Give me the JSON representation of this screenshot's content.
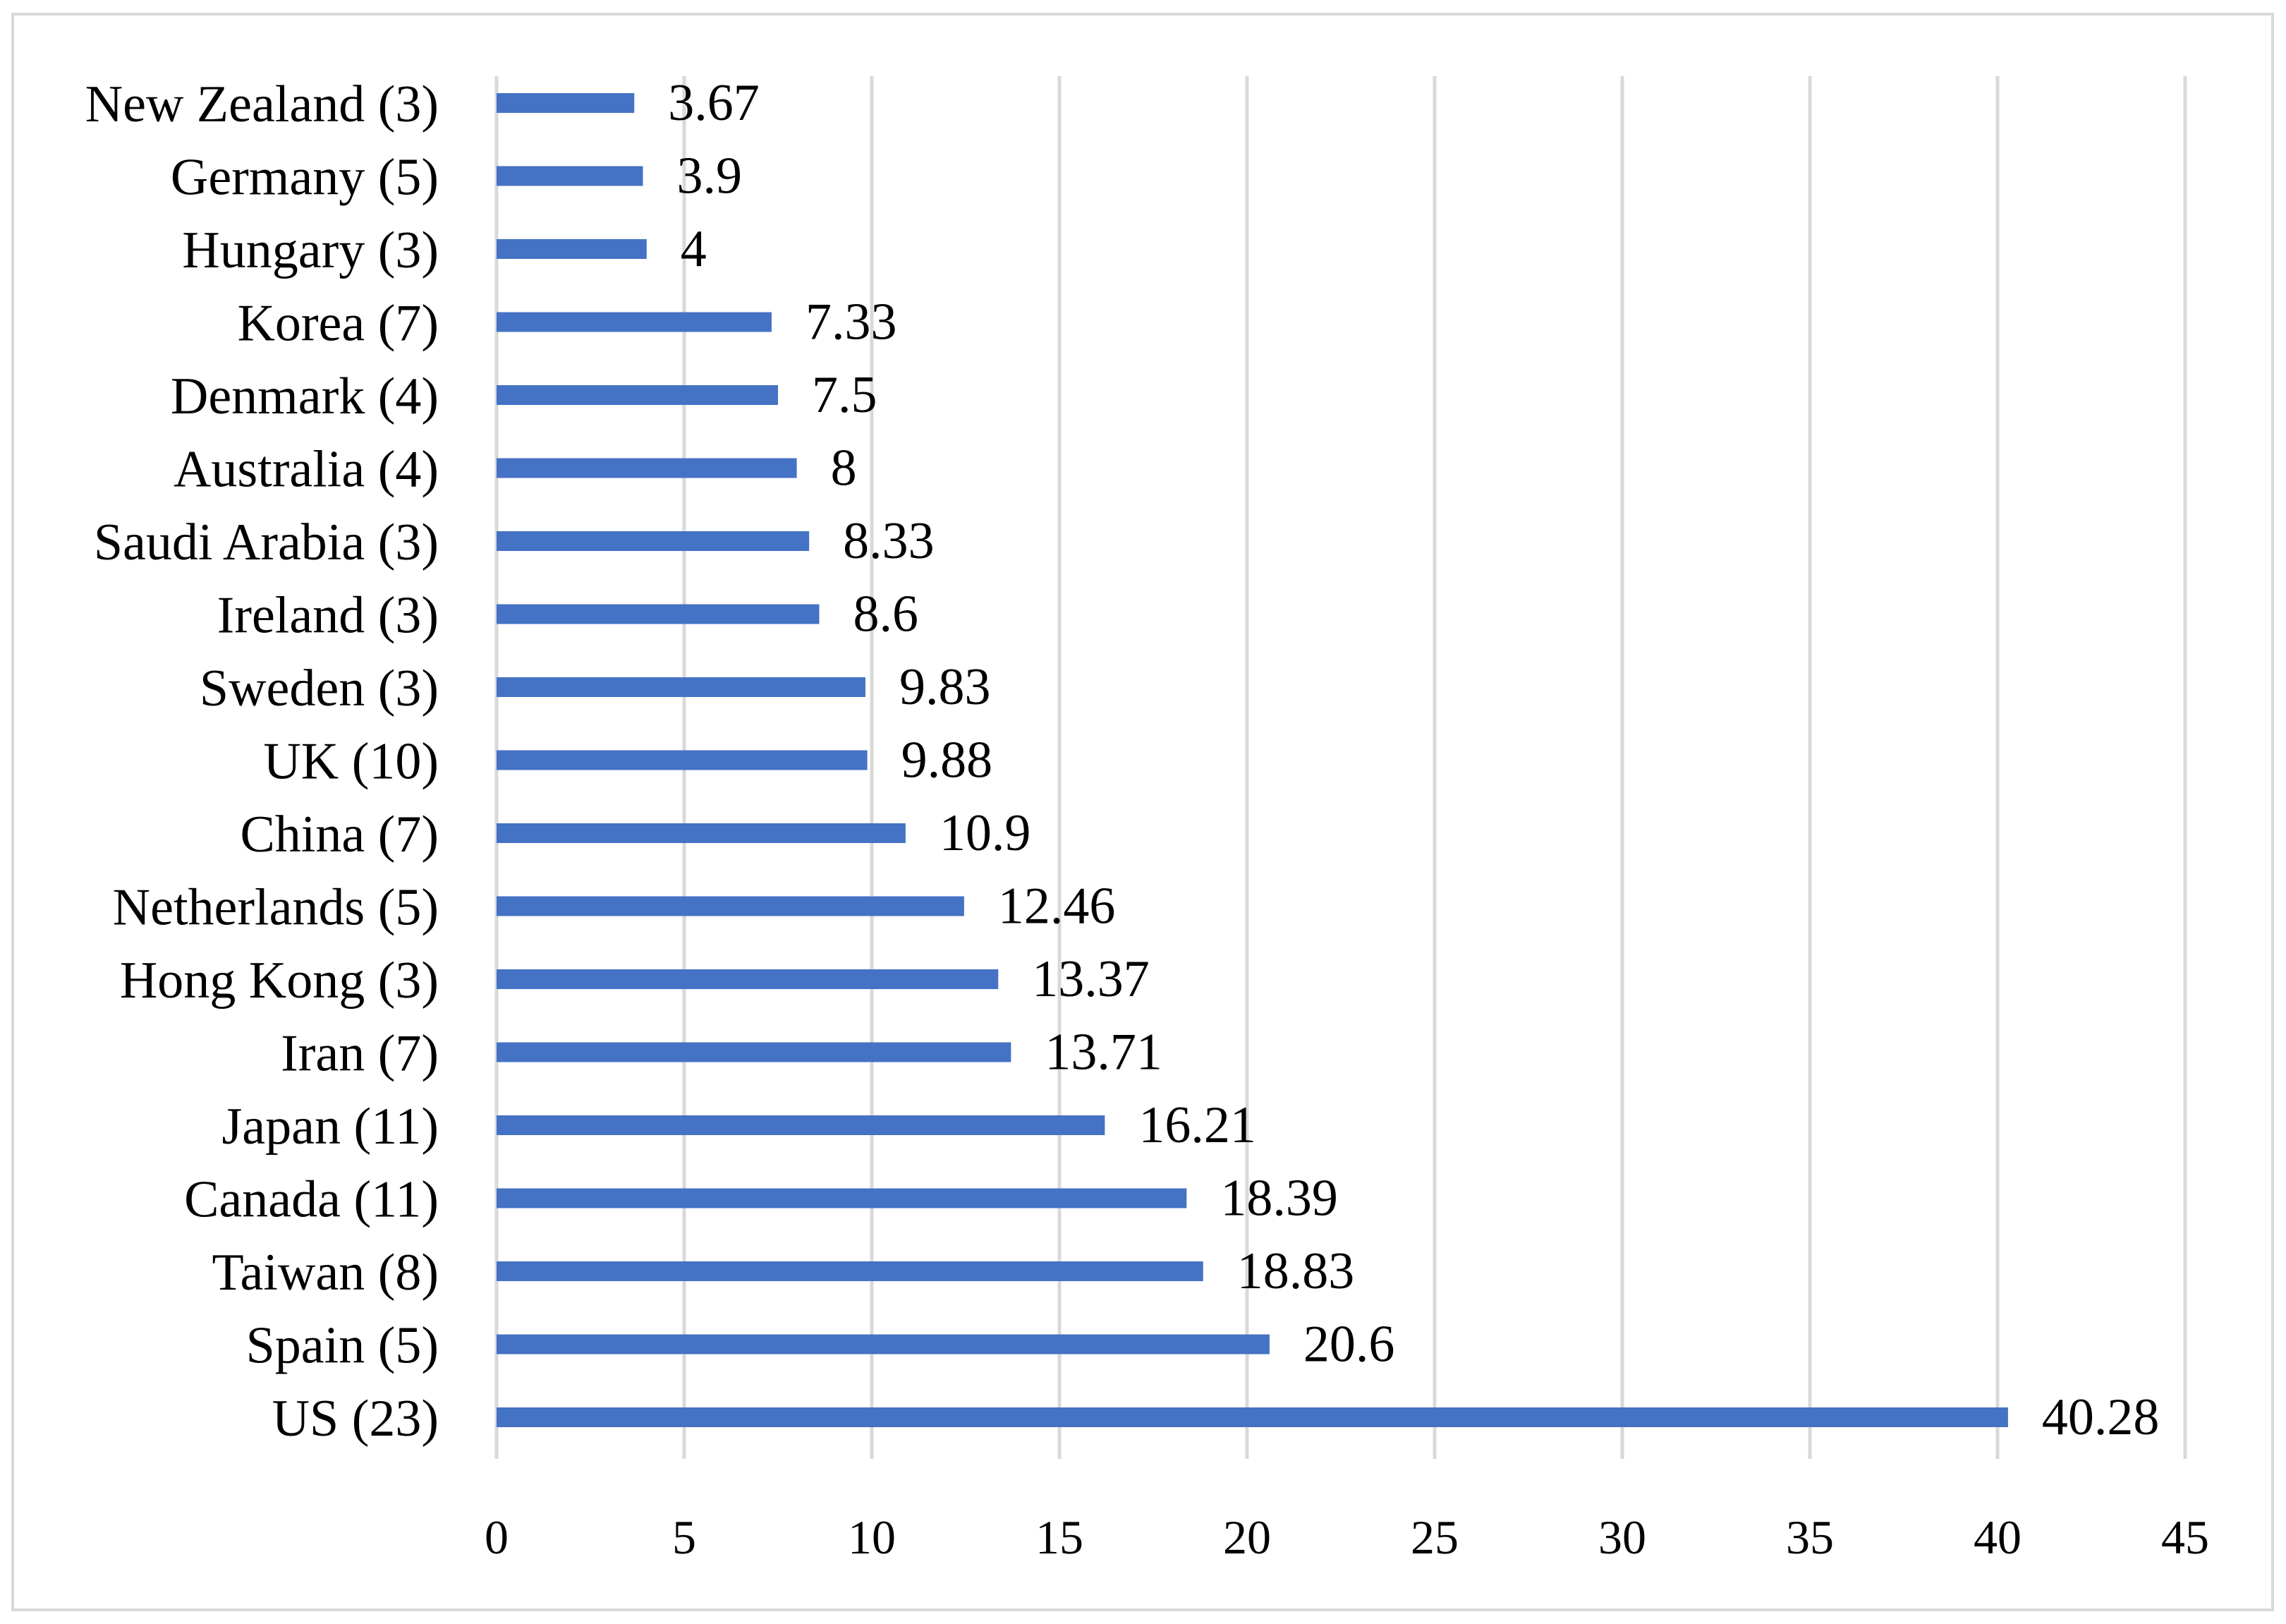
{
  "chart_data": {
    "type": "bar",
    "orientation": "horizontal",
    "categories": [
      "New Zealand (3)",
      "Germany (5)",
      "Hungary (3)",
      "Korea (7)",
      "Denmark (4)",
      "Australia (4)",
      "Saudi Arabia (3)",
      "Ireland (3)",
      "Sweden (3)",
      "UK (10)",
      "China (7)",
      "Netherlands (5)",
      "Hong Kong (3)",
      "Iran (7)",
      "Japan (11)",
      "Canada (11)",
      "Taiwan (8)",
      "Spain (5)",
      "US (23)"
    ],
    "values": [
      3.67,
      3.9,
      4,
      7.33,
      7.5,
      8,
      8.33,
      8.6,
      9.83,
      9.88,
      10.9,
      12.46,
      13.37,
      13.71,
      16.21,
      18.39,
      18.83,
      20.6,
      40.28
    ],
    "value_labels": [
      "3.67",
      "3.9",
      "4",
      "7.33",
      "7.5",
      "8",
      "8.33",
      "8.6",
      "9.83",
      "9.88",
      "10.9",
      "12.46",
      "13.37",
      "13.71",
      "16.21",
      "18.39",
      "18.83",
      "20.6",
      "40.28"
    ],
    "x_ticks": [
      "0",
      "5",
      "10",
      "15",
      "20",
      "25",
      "30",
      "35",
      "40",
      "45"
    ],
    "xlim": [
      0,
      45
    ],
    "title": "",
    "xlabel": "",
    "ylabel": "",
    "grid": "vertical",
    "legend": "none",
    "colors": {
      "bar": "#4472c4",
      "grid": "#d9d9d9",
      "frame": "#d9d9d9"
    }
  }
}
